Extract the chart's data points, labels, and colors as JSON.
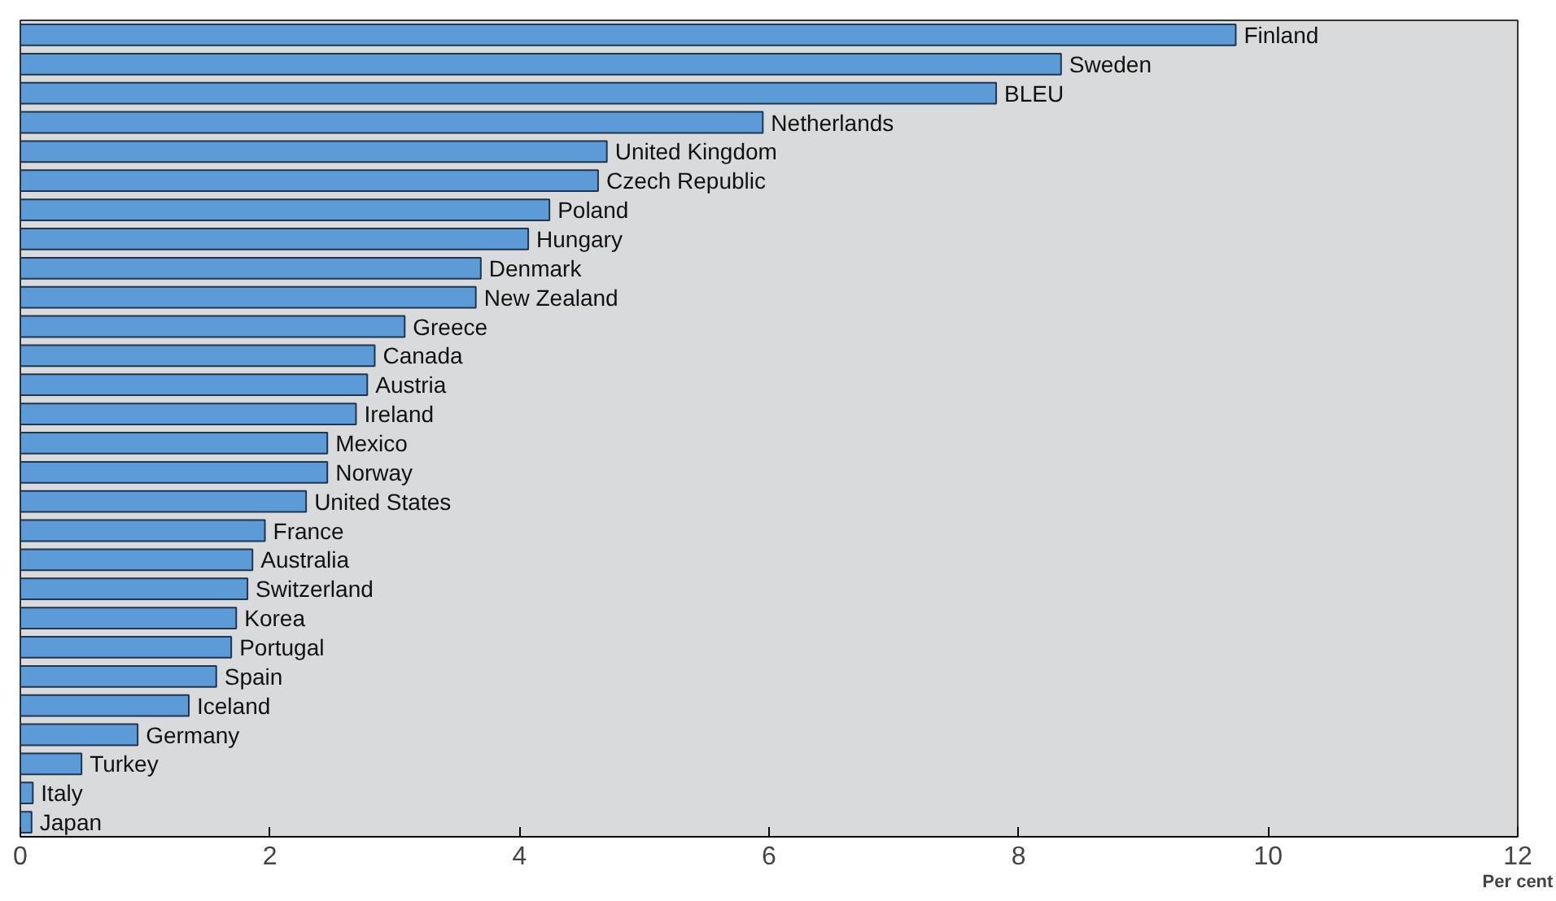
{
  "chart_data": {
    "type": "bar",
    "orientation": "horizontal",
    "xlabel": "Per cent",
    "categories": [
      "Finland",
      "Sweden",
      "BLEU",
      "Netherlands",
      "United Kingdom",
      "Czech Republic",
      "Poland",
      "Hungary",
      "Denmark",
      "New Zealand",
      "Greece",
      "Canada",
      "Austria",
      "Ireland",
      "Mexico",
      "Norway",
      "United States",
      "France",
      "Australia",
      "Switzerland",
      "Korea",
      "Portugal",
      "Spain",
      "Iceland",
      "Germany",
      "Turkey",
      "Italy",
      "Japan"
    ],
    "values": [
      9.74,
      8.34,
      7.82,
      5.95,
      4.7,
      4.63,
      4.24,
      4.07,
      3.69,
      3.65,
      3.08,
      2.84,
      2.78,
      2.69,
      2.46,
      2.46,
      2.29,
      1.96,
      1.86,
      1.82,
      1.73,
      1.69,
      1.57,
      1.35,
      0.94,
      0.49,
      0.1,
      0.09
    ],
    "color": "#5c9bd6",
    "xlim": [
      0,
      12
    ],
    "xticks": [
      0,
      2,
      4,
      6,
      8,
      10,
      12
    ],
    "grid": false,
    "tick_labels": "x"
  }
}
